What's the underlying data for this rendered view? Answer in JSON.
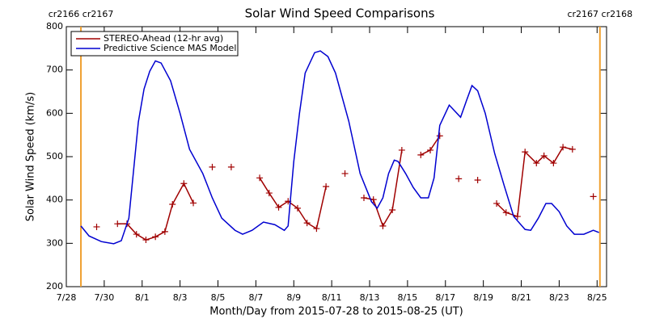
{
  "chart_data": {
    "type": "line",
    "title": "Solar Wind Speed Comparisons",
    "xlabel": "Month/Day from 2015-07-28 to 2015-08-25 (UT)",
    "ylabel": "Solar Wind Speed (km/s)",
    "xlim": [
      0,
      28.5
    ],
    "ylim": [
      200,
      800
    ],
    "yticks": [
      200,
      300,
      400,
      500,
      600,
      700,
      800
    ],
    "xticks": [
      {
        "value": 0,
        "label": "7/28"
      },
      {
        "value": 2,
        "label": "7/30"
      },
      {
        "value": 4,
        "label": "8/1"
      },
      {
        "value": 6,
        "label": "8/3"
      },
      {
        "value": 8,
        "label": "8/5"
      },
      {
        "value": 10,
        "label": "8/7"
      },
      {
        "value": 12,
        "label": "8/9"
      },
      {
        "value": 14,
        "label": "8/11"
      },
      {
        "value": 16,
        "label": "8/13"
      },
      {
        "value": 18,
        "label": "8/15"
      },
      {
        "value": 20,
        "label": "8/17"
      },
      {
        "value": 22,
        "label": "8/19"
      },
      {
        "value": 24,
        "label": "8/21"
      },
      {
        "value": 26,
        "label": "8/23"
      },
      {
        "value": 28,
        "label": "8/25"
      }
    ],
    "legend": "upper left",
    "annotations": [
      {
        "label": "cr2166 cr2167",
        "x": 0.77,
        "color": "#f0a030"
      },
      {
        "label": "cr2167 cr2168",
        "x": 28.15,
        "color": "#f0a030"
      }
    ],
    "series": [
      {
        "name": "STEREO-Ahead (12-hr avg)",
        "color": "#a00000",
        "marker": "+",
        "x": [
          1.6,
          null,
          2.7,
          3.2,
          3.7,
          4.2,
          4.7,
          5.2,
          5.6,
          6.2,
          6.7,
          null,
          7.7,
          null,
          8.7,
          null,
          10.2,
          10.7,
          11.2,
          11.7,
          12.2,
          12.7,
          13.2,
          13.7,
          null,
          14.7,
          null,
          15.7,
          16.2,
          16.7,
          17.2,
          17.7,
          null,
          18.7,
          19.2,
          19.7,
          null,
          20.7,
          null,
          21.7,
          null,
          22.7,
          23.2,
          23.8,
          24.2,
          24.8,
          25.2,
          25.7,
          26.2,
          26.7,
          null,
          27.8
        ],
        "values": [
          338,
          null,
          345,
          345,
          321,
          308,
          315,
          327,
          390,
          438,
          393,
          null,
          476,
          null,
          476,
          null,
          451,
          416,
          383,
          397,
          381,
          347,
          334,
          431,
          null,
          461,
          null,
          405,
          401,
          340,
          377,
          515,
          null,
          504,
          515,
          548,
          null,
          449,
          null,
          446,
          null,
          392,
          371,
          362,
          511,
          485,
          502,
          485,
          522,
          517,
          null,
          408
        ]
      },
      {
        "name": "Predictive Science MAS Model",
        "color": "#0000d0",
        "x": [
          0.77,
          1.2,
          1.85,
          2.5,
          2.9,
          3.3,
          3.8,
          4.1,
          4.4,
          4.7,
          5.0,
          5.5,
          6.0,
          6.5,
          7.2,
          7.7,
          8.2,
          8.9,
          9.3,
          9.8,
          10.4,
          11.0,
          11.5,
          11.7,
          12.0,
          12.3,
          12.6,
          13.1,
          13.4,
          13.8,
          14.2,
          14.9,
          15.5,
          16.1,
          16.4,
          16.7,
          17.0,
          17.3,
          17.5,
          17.9,
          18.3,
          18.7,
          19.1,
          19.4,
          19.7,
          20.2,
          20.8,
          21.1,
          21.4,
          21.7,
          22.1,
          22.6,
          23.1,
          23.6,
          24.2,
          24.5,
          24.9,
          25.3,
          25.6,
          26.0,
          26.4,
          26.8,
          27.3,
          27.8,
          28.1
        ],
        "values": [
          340,
          317,
          304,
          299,
          306,
          358,
          580,
          656,
          697,
          721,
          716,
          675,
          600,
          517,
          461,
          405,
          358,
          330,
          321,
          330,
          349,
          343,
          330,
          340,
          489,
          600,
          693,
          740,
          744,
          731,
          693,
          582,
          461,
          396,
          381,
          405,
          461,
          492,
          489,
          461,
          429,
          405,
          405,
          451,
          572,
          619,
          591,
          628,
          664,
          652,
          600,
          507,
          433,
          362,
          332,
          330,
          358,
          392,
          392,
          373,
          340,
          321,
          321,
          330,
          325
        ]
      }
    ]
  }
}
